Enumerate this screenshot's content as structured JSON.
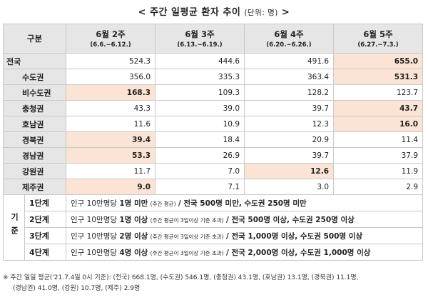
{
  "title": {
    "main": "< 주간 일평균 환자 추이",
    "unit": "(단위: 명)",
    "tail": ">"
  },
  "header": {
    "category": "구분",
    "weeks": [
      {
        "label": "6월 2주",
        "range": "(6.6.~6.12.)"
      },
      {
        "label": "6월 3주",
        "range": "(6.13.~6.19.)"
      },
      {
        "label": "6월 4주",
        "range": "(6.20.~6.26.)"
      },
      {
        "label": "6월 5주",
        "range": "(6.27.~7.3.)"
      }
    ]
  },
  "rows": [
    {
      "region": "전국",
      "values": [
        "524.3",
        "444.6",
        "491.6",
        "655.0"
      ]
    },
    {
      "region": "수도권",
      "values": [
        "356.0",
        "335.3",
        "363.4",
        "531.3"
      ]
    },
    {
      "region": "비수도권",
      "values": [
        "168.3",
        "109.3",
        "128.2",
        "123.7"
      ]
    },
    {
      "region": "충청권",
      "values": [
        "43.3",
        "39.0",
        "39.7",
        "43.7"
      ]
    },
    {
      "region": "호남권",
      "values": [
        "11.6",
        "10.9",
        "12.3",
        "16.0"
      ]
    },
    {
      "region": "경북권",
      "values": [
        "39.4",
        "18.4",
        "20.9",
        "11.4"
      ]
    },
    {
      "region": "경남권",
      "values": [
        "53.3",
        "26.9",
        "39.7",
        "37.9"
      ]
    },
    {
      "region": "강원권",
      "values": [
        "11.7",
        "7.0",
        "12.6",
        "11.9"
      ]
    },
    {
      "region": "제주권",
      "values": [
        "9.0",
        "7.1",
        "3.0",
        "2.9"
      ]
    }
  ],
  "criteria": {
    "label": "기준",
    "stages": [
      {
        "stage": "1단계",
        "pre": "인구 10만명당",
        "count": "1명 미만",
        "note": "(주간 평균)",
        "post": "/ 전국 500명 미만, 수도권 250명 미만"
      },
      {
        "stage": "2단계",
        "pre": "인구 10만명당",
        "count": "1명 이상",
        "note": "(주간 평균이 3일이상 기준 초과)",
        "post": "/ 전국 500명 이상, 수도권 250명 이상"
      },
      {
        "stage": "3단계",
        "pre": "인구 10만명당",
        "count": "2명 이상",
        "note": "(주간 평균이 3일이상 기준 초과)",
        "post": "/ 전국 1,000명 이상, 수도권 500명 이상"
      },
      {
        "stage": "4단계",
        "pre": "인구 10만명당",
        "count": "4명 이상",
        "note": "(주간 평균이 3일이상 기준 초과)",
        "post": "/ 전국 2,000명 이상, 수도권 1,000명 이상"
      }
    ]
  },
  "footnote": {
    "line1": "※ 주간 일일 평균('21.7.4일 0시 기준): (전국) 668.1명, (수도권) 546.1명, (충청권) 43.1명, (호남권) 13.1명, (경북권) 11.1명,",
    "line2": "(경남권) 41.0명, (강원) 10.7명, (제주) 2.9명"
  },
  "colors": {
    "header_bg": "#e7e6e6",
    "highlight_bg": "#fbe4d5"
  }
}
